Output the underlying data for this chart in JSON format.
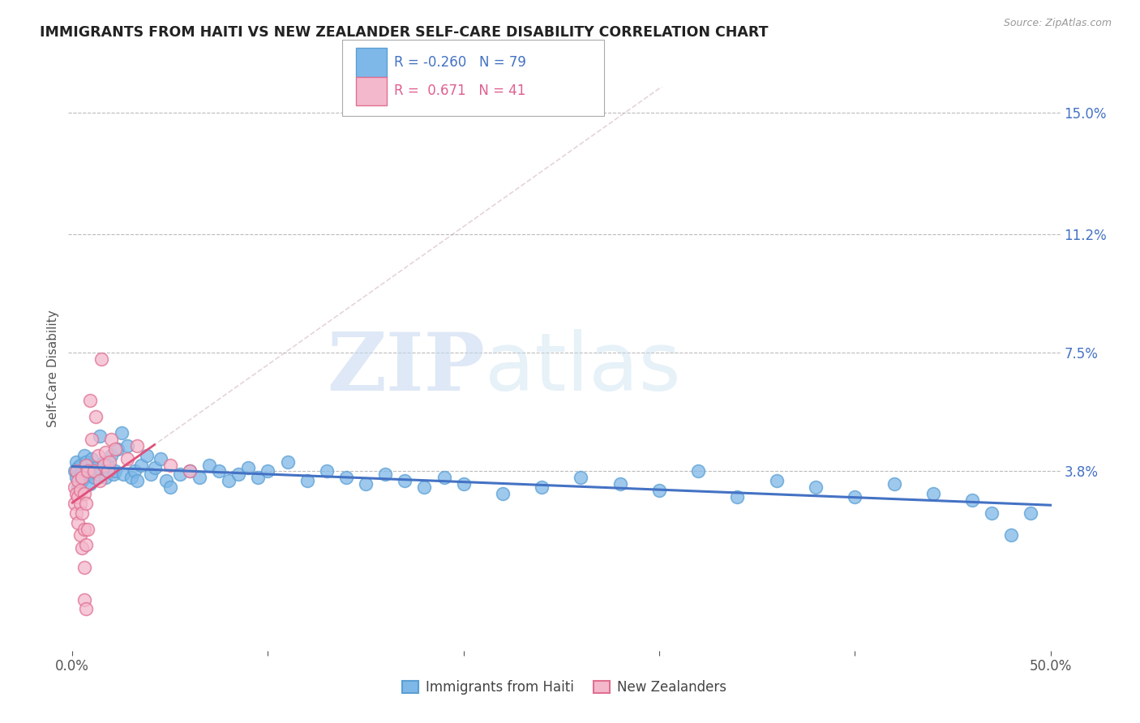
{
  "title": "IMMIGRANTS FROM HAITI VS NEW ZEALANDER SELF-CARE DISABILITY CORRELATION CHART",
  "source": "Source: ZipAtlas.com",
  "ylabel": "Self-Care Disability",
  "xlim": [
    -0.002,
    0.505
  ],
  "ylim": [
    -0.018,
    0.158
  ],
  "xticks": [
    0.0,
    0.1,
    0.2,
    0.3,
    0.4,
    0.5
  ],
  "xticklabels": [
    "0.0%",
    "",
    "",
    "",
    "",
    "50.0%"
  ],
  "ytick_positions": [
    0.038,
    0.075,
    0.112,
    0.15
  ],
  "ytick_labels": [
    "3.8%",
    "7.5%",
    "11.2%",
    "15.0%"
  ],
  "grid_color": "#bbbbbb",
  "background_color": "#ffffff",
  "series1_color": "#7eb8e8",
  "series1_edge": "#5a9fd4",
  "series2_color": "#f4b8cc",
  "series2_edge": "#e07090",
  "series1_label": "Immigrants from Haiti",
  "series2_label": "New Zealanders",
  "series1_R": "-0.260",
  "series1_N": "79",
  "series2_R": "0.671",
  "series2_N": "41",
  "trendline1_color": "#4472c4",
  "trendline2_color": "#e0507a",
  "trendline_ext_color": "#ddaaaa",
  "watermark_zip": "ZIP",
  "watermark_atlas": "atlas",
  "title_color": "#222222",
  "axis_label_color": "#555555",
  "right_axis_label_color": "#4472c4",
  "series1_points": [
    [
      0.001,
      0.038
    ],
    [
      0.002,
      0.041
    ],
    [
      0.002,
      0.036
    ],
    [
      0.003,
      0.039
    ],
    [
      0.003,
      0.033
    ],
    [
      0.004,
      0.04
    ],
    [
      0.004,
      0.037
    ],
    [
      0.005,
      0.035
    ],
    [
      0.005,
      0.038
    ],
    [
      0.006,
      0.043
    ],
    [
      0.006,
      0.036
    ],
    [
      0.007,
      0.039
    ],
    [
      0.007,
      0.041
    ],
    [
      0.008,
      0.037
    ],
    [
      0.008,
      0.04
    ],
    [
      0.009,
      0.034
    ],
    [
      0.01,
      0.038
    ],
    [
      0.01,
      0.042
    ],
    [
      0.011,
      0.036
    ],
    [
      0.012,
      0.039
    ],
    [
      0.013,
      0.037
    ],
    [
      0.014,
      0.049
    ],
    [
      0.015,
      0.038
    ],
    [
      0.016,
      0.041
    ],
    [
      0.017,
      0.036
    ],
    [
      0.018,
      0.04
    ],
    [
      0.02,
      0.043
    ],
    [
      0.021,
      0.037
    ],
    [
      0.022,
      0.038
    ],
    [
      0.023,
      0.045
    ],
    [
      0.025,
      0.05
    ],
    [
      0.026,
      0.037
    ],
    [
      0.028,
      0.046
    ],
    [
      0.03,
      0.036
    ],
    [
      0.032,
      0.038
    ],
    [
      0.033,
      0.035
    ],
    [
      0.035,
      0.04
    ],
    [
      0.038,
      0.043
    ],
    [
      0.04,
      0.037
    ],
    [
      0.042,
      0.039
    ],
    [
      0.045,
      0.042
    ],
    [
      0.048,
      0.035
    ],
    [
      0.05,
      0.033
    ],
    [
      0.055,
      0.037
    ],
    [
      0.06,
      0.038
    ],
    [
      0.065,
      0.036
    ],
    [
      0.07,
      0.04
    ],
    [
      0.075,
      0.038
    ],
    [
      0.08,
      0.035
    ],
    [
      0.085,
      0.037
    ],
    [
      0.09,
      0.039
    ],
    [
      0.095,
      0.036
    ],
    [
      0.1,
      0.038
    ],
    [
      0.11,
      0.041
    ],
    [
      0.12,
      0.035
    ],
    [
      0.13,
      0.038
    ],
    [
      0.14,
      0.036
    ],
    [
      0.15,
      0.034
    ],
    [
      0.16,
      0.037
    ],
    [
      0.17,
      0.035
    ],
    [
      0.18,
      0.033
    ],
    [
      0.19,
      0.036
    ],
    [
      0.2,
      0.034
    ],
    [
      0.22,
      0.031
    ],
    [
      0.24,
      0.033
    ],
    [
      0.26,
      0.036
    ],
    [
      0.28,
      0.034
    ],
    [
      0.3,
      0.032
    ],
    [
      0.32,
      0.038
    ],
    [
      0.34,
      0.03
    ],
    [
      0.36,
      0.035
    ],
    [
      0.38,
      0.033
    ],
    [
      0.4,
      0.03
    ],
    [
      0.42,
      0.034
    ],
    [
      0.44,
      0.031
    ],
    [
      0.46,
      0.029
    ],
    [
      0.47,
      0.025
    ],
    [
      0.48,
      0.018
    ],
    [
      0.49,
      0.025
    ]
  ],
  "series2_points": [
    [
      0.001,
      0.033
    ],
    [
      0.001,
      0.028
    ],
    [
      0.002,
      0.038
    ],
    [
      0.002,
      0.025
    ],
    [
      0.002,
      0.031
    ],
    [
      0.003,
      0.03
    ],
    [
      0.003,
      0.035
    ],
    [
      0.003,
      0.022
    ],
    [
      0.004,
      0.032
    ],
    [
      0.004,
      0.028
    ],
    [
      0.004,
      0.018
    ],
    [
      0.005,
      0.036
    ],
    [
      0.005,
      0.025
    ],
    [
      0.005,
      0.014
    ],
    [
      0.006,
      0.031
    ],
    [
      0.006,
      0.02
    ],
    [
      0.006,
      0.008
    ],
    [
      0.006,
      -0.002
    ],
    [
      0.007,
      0.04
    ],
    [
      0.007,
      0.028
    ],
    [
      0.007,
      0.015
    ],
    [
      0.007,
      -0.005
    ],
    [
      0.008,
      0.038
    ],
    [
      0.008,
      0.02
    ],
    [
      0.009,
      0.06
    ],
    [
      0.01,
      0.048
    ],
    [
      0.011,
      0.038
    ],
    [
      0.012,
      0.055
    ],
    [
      0.013,
      0.043
    ],
    [
      0.014,
      0.035
    ],
    [
      0.015,
      0.073
    ],
    [
      0.016,
      0.04
    ],
    [
      0.017,
      0.044
    ],
    [
      0.018,
      0.038
    ],
    [
      0.019,
      0.041
    ],
    [
      0.02,
      0.048
    ],
    [
      0.022,
      0.045
    ],
    [
      0.028,
      0.042
    ],
    [
      0.033,
      0.046
    ],
    [
      0.05,
      0.04
    ],
    [
      0.06,
      0.038
    ]
  ]
}
